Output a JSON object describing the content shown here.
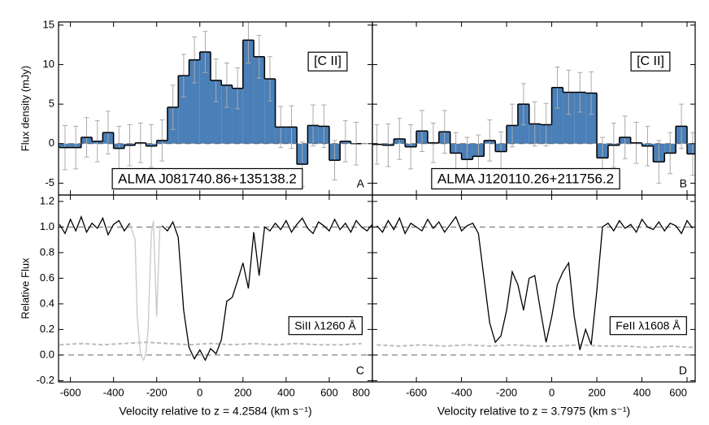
{
  "chart_data": [
    {
      "type": "histogram",
      "ylabel": "Flux density (mJy)",
      "line_label": "[C II]",
      "source": "ALMA J081740.86+135138.2",
      "panel": "A",
      "color": "#4a7fb8",
      "xlim": [
        -655,
        800
      ],
      "ylim": [
        -6.5,
        15.4
      ],
      "yticks": [
        -5,
        0,
        5,
        10,
        15
      ],
      "hlines": [
        0
      ],
      "bins": [
        -700,
        -650,
        -600,
        -550,
        -500,
        -450,
        -400,
        -350,
        -300,
        -250,
        -200,
        -150,
        -100,
        -50,
        0,
        50,
        100,
        150,
        200,
        250,
        300,
        350,
        400,
        450,
        500,
        550,
        600,
        650,
        700,
        750
      ],
      "values": [
        -0.4,
        -0.5,
        -0.5,
        0.8,
        0.3,
        1.4,
        -0.6,
        -0.2,
        0.1,
        -0.3,
        0.4,
        4.6,
        8.6,
        10.6,
        11.6,
        8.0,
        7.4,
        7.0,
        13.1,
        11.0,
        8.2,
        2.1,
        2.1,
        -2.6,
        2.3,
        2.2,
        -2.1,
        0.3,
        0.0
      ],
      "errors": [
        2.6,
        2.8,
        2.7,
        2.5,
        2.6,
        2.7,
        2.8,
        2.6,
        2.5,
        2.7,
        2.6,
        2.8,
        2.7,
        2.9,
        2.6,
        2.7,
        2.8,
        2.6,
        2.9,
        2.7,
        2.8,
        2.6,
        2.7,
        2.8,
        2.6,
        2.7,
        2.5,
        2.6,
        2.7
      ]
    },
    {
      "type": "histogram",
      "line_label": "[C II]",
      "source": "ALMA J120110.26+211756.2",
      "panel": "B",
      "color": "#4a7fb8",
      "xlim": [
        -795,
        636
      ],
      "ylim": [
        -6.5,
        15.4
      ],
      "hlines": [
        0
      ],
      "bins": [
        -800,
        -750,
        -700,
        -650,
        -600,
        -550,
        -500,
        -450,
        -400,
        -350,
        -300,
        -250,
        -200,
        -150,
        -100,
        -50,
        0,
        50,
        100,
        150,
        200,
        250,
        300,
        350,
        400,
        450,
        500,
        550,
        600,
        650
      ],
      "values": [
        -0.1,
        -0.2,
        0.6,
        -0.4,
        1.6,
        0.1,
        1.5,
        -1.2,
        -2.0,
        -1.6,
        0.4,
        -1.0,
        2.3,
        5.0,
        2.5,
        2.4,
        7.1,
        6.5,
        6.5,
        6.4,
        -1.8,
        -0.2,
        0.8,
        0.1,
        -0.3,
        -2.3,
        -1.2,
        2.2,
        -1.3
      ],
      "errors": [
        2.5,
        2.7,
        2.6,
        2.8,
        2.6,
        2.5,
        2.7,
        2.6,
        2.8,
        2.7,
        2.6,
        2.5,
        2.7,
        2.6,
        2.8,
        2.7,
        2.6,
        2.8,
        2.5,
        2.7,
        2.6,
        2.8,
        2.7,
        2.6,
        2.5,
        2.7,
        2.6,
        2.8,
        2.7
      ]
    },
    {
      "type": "line",
      "ylabel": "Relative Flux",
      "xlabel": "Velocity relative to z = 4.2584 (km s⁻¹)",
      "line_label": "SiII λ1260 Å",
      "panel": "C",
      "color": "#000000",
      "xlim": [
        -655,
        800
      ],
      "ylim": [
        -0.21,
        1.25
      ],
      "xticks": [
        -600,
        -400,
        -200,
        0,
        200,
        400,
        600,
        800
      ],
      "yticks": [
        -0.2,
        {
          "value": 0,
          "label": "0.0"
        },
        0.2,
        0.4,
        0.6,
        0.8,
        {
          "value": 1,
          "label": "1.0"
        },
        1.2
      ],
      "hlines": [
        0,
        1
      ],
      "x": [
        -650,
        -625,
        -600,
        -575,
        -550,
        -525,
        -500,
        -475,
        -450,
        -425,
        -400,
        -375,
        -350,
        -325,
        -300,
        -275,
        -250,
        -225,
        -200,
        -175,
        -150,
        -125,
        -100,
        -75,
        -50,
        -25,
        0,
        25,
        50,
        75,
        100,
        125,
        150,
        175,
        200,
        225,
        250,
        275,
        300,
        325,
        350,
        375,
        400,
        425,
        450,
        475,
        500,
        525,
        550,
        575,
        600,
        625,
        650,
        675,
        700,
        725,
        750,
        775,
        800
      ],
      "values": [
        1.02,
        0.95,
        1.06,
        0.97,
        1.08,
        0.96,
        1.03,
        0.99,
        1.07,
        0.94,
        1.02,
        1.05,
        0.97,
        1.03,
        null,
        null,
        null,
        null,
        null,
        1.01,
        0.97,
        1.04,
        0.92,
        0.35,
        0.06,
        -0.03,
        0.04,
        -0.04,
        0.05,
        0.01,
        0.12,
        0.42,
        0.45,
        0.58,
        0.72,
        0.52,
        0.96,
        0.62,
        1.0,
        0.97,
        1.03,
        0.98,
        1.05,
        0.96,
        1.02,
        1.07,
        0.99,
        0.95,
        1.04,
        1.01,
        0.97,
        1.06,
        0.98,
        1.03,
        0.96,
        1.05,
        1.0,
        0.97,
        1.02
      ],
      "masked": {
        "color": "#c8c8c8",
        "x": [
          -325,
          -300,
          -290,
          -275,
          -260,
          -250,
          -240,
          -225,
          -215,
          -200,
          -185
        ],
        "values": [
          1.03,
          0.9,
          0.3,
          0.0,
          -0.04,
          0.02,
          0.2,
          0.95,
          1.05,
          0.3,
          1.01
        ]
      },
      "error": {
        "color": "#bbbbbb",
        "x": [
          -650,
          -550,
          -450,
          -350,
          -250,
          -150,
          -50,
          50,
          150,
          250,
          350,
          450,
          550,
          650,
          750
        ],
        "values": [
          0.08,
          0.09,
          0.08,
          0.09,
          0.1,
          0.09,
          0.08,
          0.09,
          0.08,
          0.09,
          0.08,
          0.09,
          0.08,
          0.08,
          0.09
        ]
      }
    },
    {
      "type": "line",
      "xlabel": "Velocity relative to z = 3.7975 (km s⁻¹)",
      "line_label": "FeII λ1608 Å",
      "panel": "D",
      "color": "#000000",
      "xlim": [
        -795,
        636
      ],
      "ylim": [
        -0.21,
        1.25
      ],
      "xticks": [
        -600,
        -400,
        -200,
        0,
        200,
        400,
        600
      ],
      "hlines": [
        0,
        1
      ],
      "x": [
        -775,
        -750,
        -725,
        -700,
        -675,
        -650,
        -625,
        -600,
        -575,
        -550,
        -525,
        -500,
        -475,
        -450,
        -425,
        -400,
        -375,
        -350,
        -325,
        -300,
        -275,
        -250,
        -225,
        -200,
        -175,
        -150,
        -125,
        -100,
        -75,
        -50,
        -25,
        0,
        25,
        50,
        75,
        100,
        125,
        150,
        175,
        200,
        225,
        250,
        275,
        300,
        325,
        350,
        375,
        400,
        425,
        450,
        475,
        500,
        525,
        550,
        575,
        600,
        625
      ],
      "values": [
        1.01,
        0.96,
        1.05,
        0.98,
        1.07,
        0.95,
        1.03,
        1.0,
        0.97,
        1.06,
        0.99,
        1.04,
        0.96,
        1.02,
        1.08,
        0.97,
        1.01,
        1.03,
        0.95,
        0.6,
        0.25,
        0.1,
        0.15,
        0.35,
        0.65,
        0.55,
        0.35,
        0.6,
        0.62,
        0.35,
        0.1,
        0.3,
        0.55,
        0.65,
        0.72,
        0.3,
        0.04,
        0.2,
        0.08,
        0.5,
        1.0,
        1.03,
        0.97,
        1.05,
        0.99,
        1.02,
        0.96,
        1.06,
        1.0,
        0.98,
        1.04,
        0.97,
        1.03,
        1.01,
        0.95,
        1.05,
        0.99
      ],
      "error": {
        "color": "#bbbbbb",
        "x": [
          -775,
          -675,
          -575,
          -475,
          -375,
          -275,
          -175,
          -75,
          25,
          125,
          225,
          325,
          425,
          525,
          625
        ],
        "values": [
          0.08,
          0.07,
          0.08,
          0.07,
          0.08,
          0.07,
          0.08,
          0.07,
          0.07,
          0.08,
          0.07,
          0.07,
          0.06,
          0.07,
          0.06
        ]
      }
    }
  ]
}
